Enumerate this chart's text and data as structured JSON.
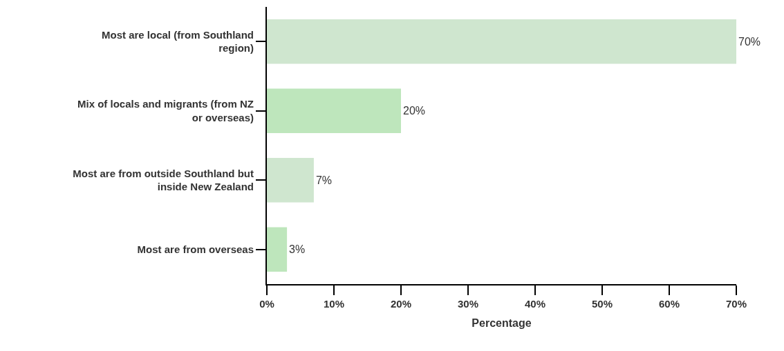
{
  "chart_data": {
    "type": "bar",
    "orientation": "horizontal",
    "xlabel": "Percentage",
    "categories": [
      "Most are local (from Southland region)",
      "Mix of locals and migrants (from NZ or overseas)",
      "Most are from outside Southland but inside New Zealand",
      "Most are from overseas"
    ],
    "values": [
      70,
      20,
      7,
      3
    ],
    "value_labels": [
      "70%",
      "20%",
      "7%",
      "3%"
    ],
    "colors": [
      "#cfe6cf",
      "#bee6bc",
      "#cfe6cf",
      "#bee6bc"
    ],
    "xlim": [
      0,
      70
    ],
    "xticks": [
      {
        "value": 0,
        "label": "0%"
      },
      {
        "value": 10,
        "label": "10%"
      },
      {
        "value": 20,
        "label": "20%"
      },
      {
        "value": 30,
        "label": "30%"
      },
      {
        "value": 40,
        "label": "40%"
      },
      {
        "value": 50,
        "label": "50%"
      },
      {
        "value": 60,
        "label": "60%"
      },
      {
        "value": 70,
        "label": "70%"
      }
    ]
  }
}
